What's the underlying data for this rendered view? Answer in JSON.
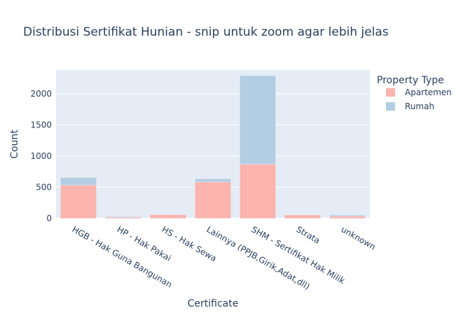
{
  "chart_data": {
    "type": "bar",
    "barmode": "stack",
    "title": "Distribusi Sertifikat Hunian - snip untuk zoom agar lebih jelas",
    "xlabel": "Certificate",
    "ylabel": "Count",
    "categories": [
      "HGB - Hak Guna Bangunan",
      "HP - Hak Pakai",
      "HS - Hak Sewa",
      "Lainnya (PPJB,Girik,Adat,dll)",
      "SHM - Sertifikat Hak Milik",
      "Strata",
      "unknown"
    ],
    "series": [
      {
        "name": "Apartemen",
        "color": "#fbb4ae",
        "values": [
          535,
          20,
          60,
          585,
          870,
          55,
          35
        ]
      },
      {
        "name": "Rumah",
        "color": "#b3cde3",
        "values": [
          120,
          10,
          5,
          50,
          1420,
          5,
          20
        ]
      }
    ],
    "ylim": [
      0,
      2380
    ],
    "yticks": [
      0,
      500,
      1000,
      1500,
      2000
    ],
    "legend_title": "Property Type",
    "legend_position": "right",
    "grid": true,
    "plot_background": "#e5ecf6"
  }
}
